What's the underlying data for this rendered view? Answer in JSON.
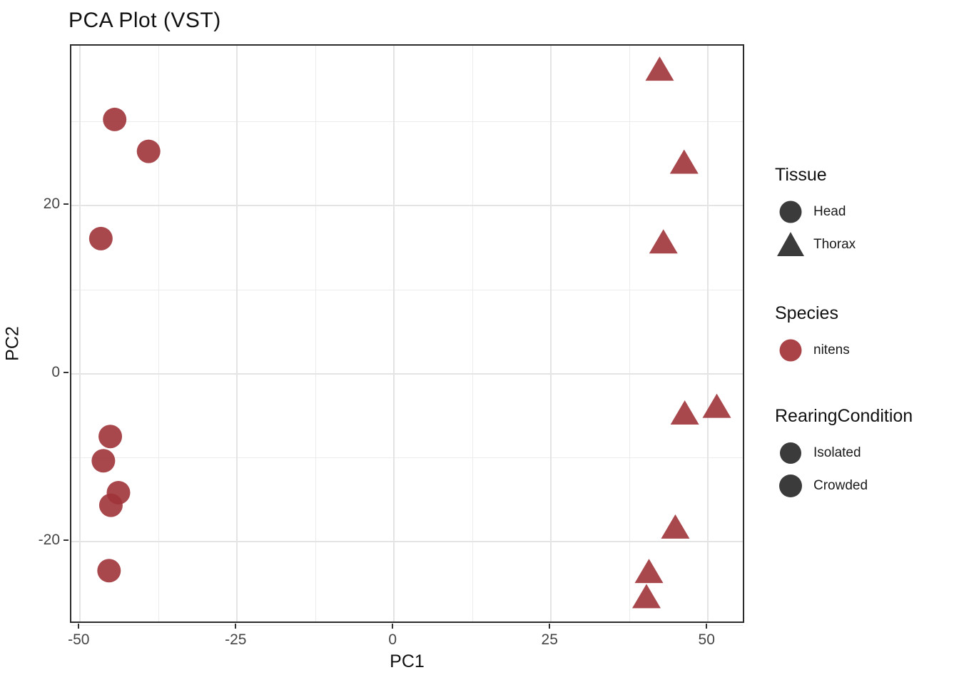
{
  "title": "PCA Plot (VST)",
  "chart_data": {
    "type": "scatter",
    "title": "PCA Plot (VST)",
    "xlabel": "PC1",
    "ylabel": "PC2",
    "xlim": [
      -51.4,
      56.0
    ],
    "ylim": [
      -29.9,
      39.1
    ],
    "x_major_ticks": [
      -50,
      -25,
      0,
      25,
      50
    ],
    "x_minor_gridlines": [
      -37.5,
      -12.5,
      12.5,
      37.5
    ],
    "y_major_ticks": [
      -20,
      0,
      20
    ],
    "y_minor_gridlines": [
      -30,
      -10,
      10,
      30
    ],
    "grid": true,
    "legend_position": "right",
    "point_color": "#9F343A",
    "point_alpha": 0.9,
    "shape_by": "Tissue",
    "color_by": "Species",
    "points": [
      {
        "pc1": -44.5,
        "pc2": 30.3,
        "tissue": "Head",
        "species": "nitens"
      },
      {
        "pc1": -39.1,
        "pc2": 26.5,
        "tissue": "Head",
        "species": "nitens"
      },
      {
        "pc1": -46.7,
        "pc2": 16.1,
        "tissue": "Head",
        "species": "nitens"
      },
      {
        "pc1": -45.2,
        "pc2": -7.5,
        "tissue": "Head",
        "species": "nitens"
      },
      {
        "pc1": -46.3,
        "pc2": -10.4,
        "tissue": "Head",
        "species": "nitens"
      },
      {
        "pc1": -43.9,
        "pc2": -14.2,
        "tissue": "Head",
        "species": "nitens"
      },
      {
        "pc1": -45.1,
        "pc2": -15.7,
        "tissue": "Head",
        "species": "nitens"
      },
      {
        "pc1": -45.4,
        "pc2": -23.5,
        "tissue": "Head",
        "species": "nitens"
      },
      {
        "pc1": 42.3,
        "pc2": 36.2,
        "tissue": "Thorax",
        "species": "nitens"
      },
      {
        "pc1": 46.2,
        "pc2": 25.1,
        "tissue": "Thorax",
        "species": "nitens"
      },
      {
        "pc1": 42.9,
        "pc2": 15.6,
        "tissue": "Thorax",
        "species": "nitens"
      },
      {
        "pc1": 46.3,
        "pc2": -4.8,
        "tissue": "Thorax",
        "species": "nitens"
      },
      {
        "pc1": 51.4,
        "pc2": -4.0,
        "tissue": "Thorax",
        "species": "nitens"
      },
      {
        "pc1": 44.8,
        "pc2": -18.4,
        "tissue": "Thorax",
        "species": "nitens"
      },
      {
        "pc1": 40.6,
        "pc2": -23.7,
        "tissue": "Thorax",
        "species": "nitens"
      },
      {
        "pc1": 40.2,
        "pc2": -26.7,
        "tissue": "Thorax",
        "species": "nitens"
      }
    ]
  },
  "legend": {
    "groups": [
      {
        "title": "Tissue",
        "items": [
          {
            "label": "Head",
            "glyph": "circle",
            "color": "#3b3b3b",
            "size": 31
          },
          {
            "label": "Thorax",
            "glyph": "triangle",
            "color": "#3b3b3b",
            "size": 38
          }
        ]
      },
      {
        "title": "Species",
        "items": [
          {
            "label": "nitens",
            "glyph": "circle",
            "color": "#A94348",
            "size": 31
          }
        ]
      },
      {
        "title": "RearingCondition",
        "items": [
          {
            "label": "Isolated",
            "glyph": "circle",
            "color": "#3b3b3b",
            "size": 30
          },
          {
            "label": "Crowded",
            "glyph": "circle",
            "color": "#3b3b3b",
            "size": 32
          }
        ]
      }
    ]
  }
}
